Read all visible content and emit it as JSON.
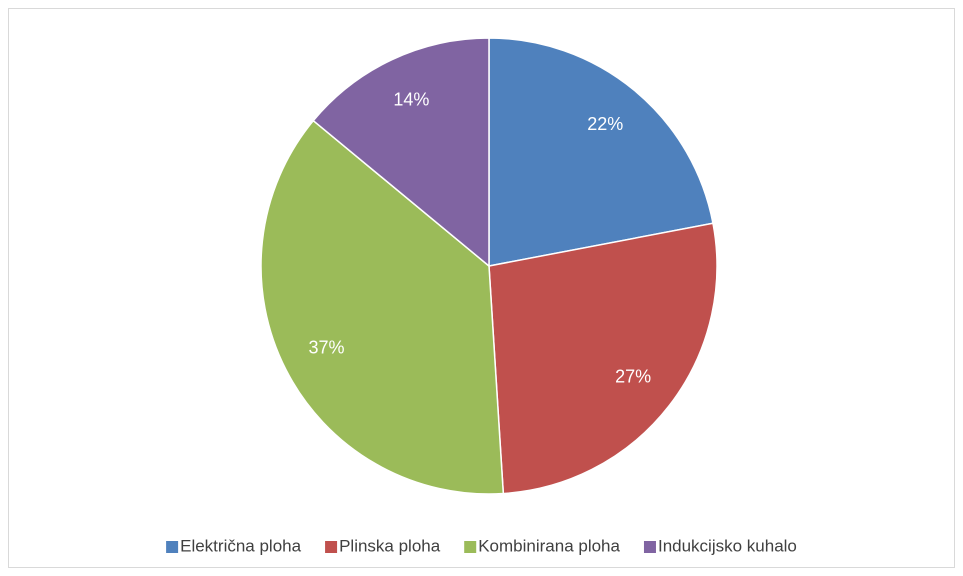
{
  "chart_data": {
    "type": "pie",
    "categories": [
      "Električna ploha",
      "Plinska ploha",
      "Kombinirana ploha",
      "Indukcijsko kuhalo"
    ],
    "values": [
      22,
      27,
      37,
      14
    ],
    "value_labels": [
      "22%",
      "27%",
      "37%",
      "14%"
    ],
    "colors": [
      "#4f81bd",
      "#c0504d",
      "#9bbb59",
      "#8064a2"
    ],
    "legend": "bottom"
  }
}
